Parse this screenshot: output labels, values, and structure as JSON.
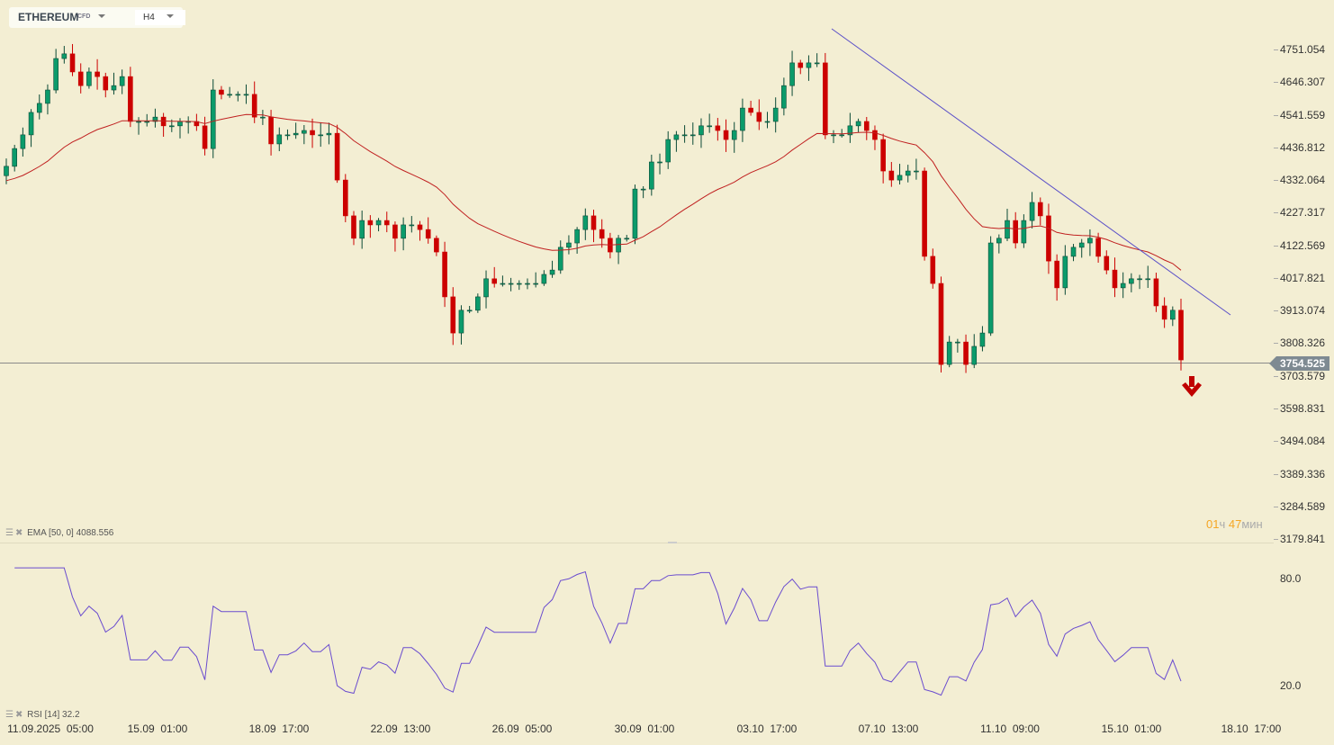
{
  "header": {
    "symbol": "ETHEREUM",
    "symbol_tag": "CFD",
    "timeframe": "H4"
  },
  "colors": {
    "up": "#0b9b6b",
    "up_border": "#0a4a36",
    "down": "#cc0000",
    "ema": "#c02020",
    "rsi": "#6a4ccf",
    "trendline": "#5a4fc8",
    "bg": "#f3eed3"
  },
  "y_axis": [
    "4751.054",
    "4646.307",
    "4541.559",
    "4436.812",
    "4332.064",
    "4227.317",
    "4122.569",
    "4017.821",
    "3913.074",
    "3808.326",
    "3703.579",
    "3598.831",
    "3494.084",
    "3389.336",
    "3284.589",
    "3179.841"
  ],
  "rsi_axis": [
    "80.0",
    "20.0"
  ],
  "x_axis": [
    "11.09.2025  05:00",
    "15.09  01:00",
    "18.09  17:00",
    "22.09  13:00",
    "26.09  05:00",
    "30.09  01:00",
    "03.10  17:00",
    "07.10  13:00",
    "11.10  09:00",
    "15.10  01:00",
    "18.10  17:00"
  ],
  "current_price": "3754.525",
  "timer": {
    "hours": "01",
    "hours_unit": "ч",
    "minutes": "47",
    "minutes_unit": "мин"
  },
  "indicators": {
    "ema_label": "EMA [50, 0] 4088.556",
    "rsi_label": "RSI [14] 32.2"
  },
  "signal_icon": "arrow-down-icon",
  "chart_data": {
    "type": "candlestick",
    "ylim": [
      3179.841,
      4751.054
    ],
    "closes": [
      4376,
      4433,
      4477,
      4549,
      4578,
      4621,
      4722,
      4737,
      4679,
      4635,
      4679,
      4664,
      4621,
      4635,
      4664,
      4520,
      4520,
      4520,
      4534,
      4506,
      4506,
      4520,
      4520,
      4506,
      4433,
      4621,
      4607,
      4607,
      4607,
      4607,
      4534,
      4534,
      4448,
      4477,
      4477,
      4482,
      4491,
      4477,
      4477,
      4482,
      4332,
      4217,
      4145,
      4202,
      4188,
      4202,
      4188,
      4145,
      4188,
      4188,
      4173,
      4145,
      4101,
      3957,
      3841,
      3914,
      3914,
      3957,
      4015,
      4000,
      4000,
      4000,
      4000,
      4000,
      4000,
      4029,
      4043,
      4116,
      4130,
      4173,
      4217,
      4173,
      4145,
      4101,
      4145,
      4145,
      4303,
      4303,
      4390,
      4390,
      4462,
      4477,
      4477,
      4477,
      4506,
      4506,
      4491,
      4462,
      4491,
      4563,
      4549,
      4520,
      4520,
      4563,
      4635,
      4708,
      4693,
      4708,
      4708,
      4477,
      4477,
      4477,
      4506,
      4520,
      4491,
      4462,
      4361,
      4332,
      4347,
      4361,
      4361,
      4087,
      4000,
      3740,
      3812,
      3812,
      3740,
      3798,
      3841,
      4130,
      4145,
      4202,
      4130,
      4202,
      4260,
      4217,
      4072,
      3986,
      4087,
      4116,
      4130,
      4145,
      4087,
      4043,
      3986,
      4000,
      4015,
      4015,
      4015,
      3928,
      3885,
      3914,
      3754.525
    ],
    "ema_period": 50,
    "rsi_period": 14,
    "rsi_ylim": [
      20,
      80
    ]
  }
}
